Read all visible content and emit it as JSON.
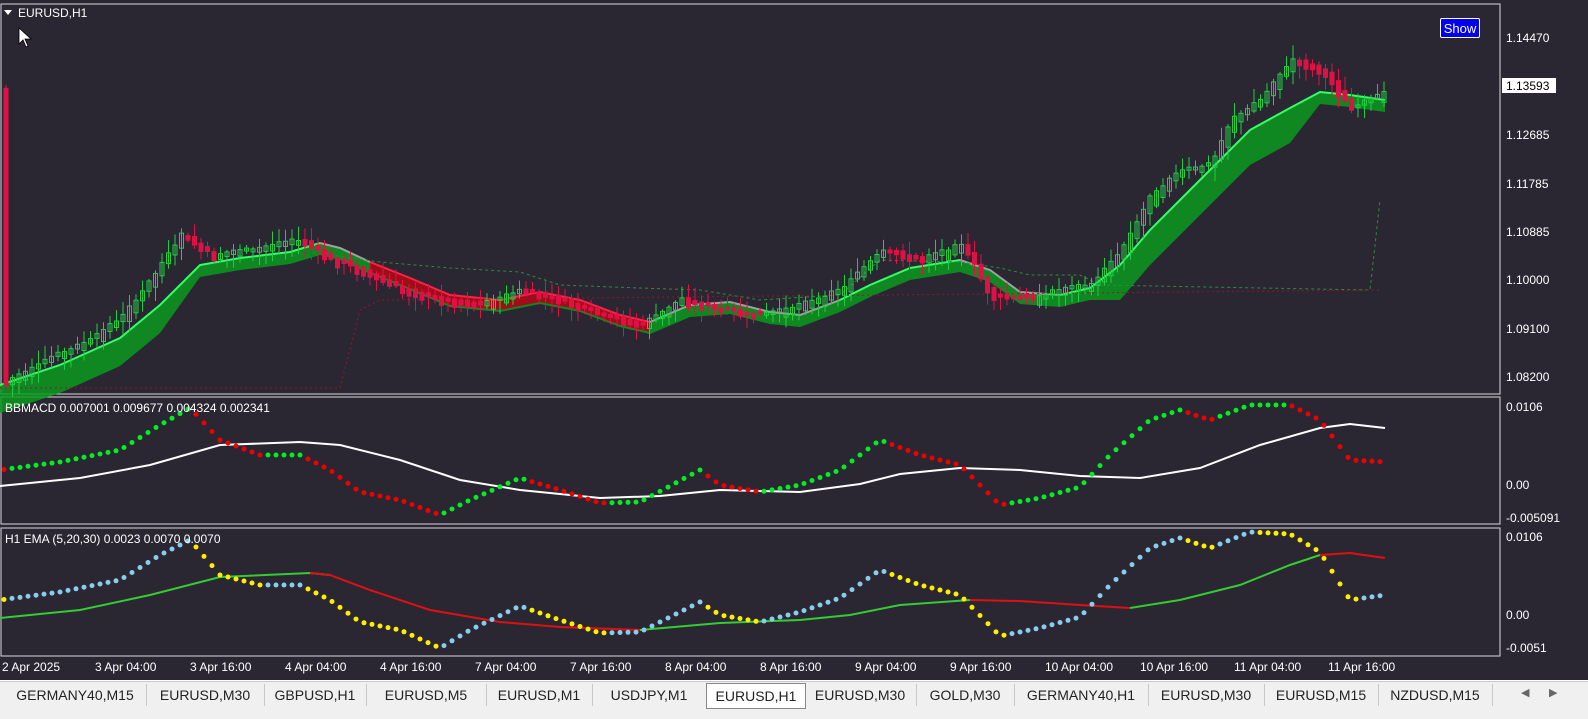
{
  "chart": {
    "symbol_label": "EURUSD,H1",
    "show_button": "Show",
    "current_price": "1.13593",
    "price_ticks": [
      "1.14470",
      "1.12685",
      "1.11785",
      "1.10885",
      "1.10000",
      "1.09100",
      "1.08200"
    ],
    "macd_label": "BBMACD 0.007001 0.009677 0.004324 0.002341",
    "macd_ticks": [
      "0.0106",
      "0.00",
      "-0.005091"
    ],
    "ema_label": "H1 EMA (5,20,30) 0.0023 0.0070 0.0070",
    "ema_ticks": [
      "0.0106",
      "0.00",
      "-0.0051"
    ],
    "time_ticks": [
      "2 Apr 2025",
      "3 Apr 04:00",
      "3 Apr 16:00",
      "4 Apr 04:00",
      "4 Apr 16:00",
      "7 Apr 04:00",
      "7 Apr 16:00",
      "8 Apr 04:00",
      "8 Apr 16:00",
      "9 Apr 04:00",
      "9 Apr 16:00",
      "10 Apr 04:00",
      "10 Apr 16:00",
      "11 Apr 04:00",
      "11 Apr 16:00"
    ],
    "colors": {
      "background": "#2a2733",
      "bull": "#22cc44",
      "bear": "#dd1144",
      "ribbon_up": "#0a9a1e",
      "ribbon_down": "#b00018",
      "neutral_line": "#a0a0a0",
      "macd_line": "#ffffff",
      "dots_green": "#00ee22",
      "dots_red": "#ee0000",
      "dots_blue": "#88ccee",
      "dots_yellow": "#ffee00"
    }
  },
  "tabs": [
    {
      "label": "GERMANY40,M15"
    },
    {
      "label": "EURUSD,M30"
    },
    {
      "label": "GBPUSD,H1"
    },
    {
      "label": "EURUSD,M5"
    },
    {
      "label": "EURUSD,M1"
    },
    {
      "label": "USDJPY,M1"
    },
    {
      "label": "EURUSD,H1",
      "active": true
    },
    {
      "label": "EURUSD,M30"
    },
    {
      "label": "GOLD,M30"
    },
    {
      "label": "GERMANY40,H1"
    },
    {
      "label": "EURUSD,M30"
    },
    {
      "label": "EURUSD,M15"
    },
    {
      "label": "NZDUSD,M15"
    }
  ]
}
